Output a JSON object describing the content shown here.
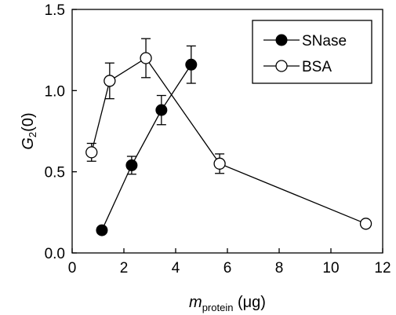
{
  "chart_data": {
    "type": "scatter",
    "xlim": [
      0,
      12
    ],
    "ylim": [
      0,
      1.5
    ],
    "x_ticks": [
      "0",
      "2",
      "4",
      "6",
      "8",
      "10",
      "12"
    ],
    "y_ticks": [
      "0.0",
      "0.5",
      "1.0",
      "1.5"
    ],
    "xlabel_main": "m",
    "xlabel_sub": "protein",
    "xlabel_unit": " (μg)",
    "ylabel_main": "G",
    "ylabel_sub": "2",
    "ylabel_tail": "(0)",
    "legend_position": "top-right",
    "series": [
      {
        "name": "SNase",
        "marker": "filled-circle",
        "color": "#000000",
        "points": [
          {
            "x": 1.15,
            "y": 0.14,
            "err": 0.0
          },
          {
            "x": 2.3,
            "y": 0.54,
            "err": 0.055
          },
          {
            "x": 3.45,
            "y": 0.88,
            "err": 0.09
          },
          {
            "x": 4.6,
            "y": 1.16,
            "err": 0.115
          }
        ]
      },
      {
        "name": "BSA",
        "marker": "open-circle",
        "color": "#000000",
        "points": [
          {
            "x": 0.75,
            "y": 0.62,
            "err": 0.055
          },
          {
            "x": 1.45,
            "y": 1.06,
            "err": 0.11
          },
          {
            "x": 2.85,
            "y": 1.2,
            "err": 0.12
          },
          {
            "x": 5.7,
            "y": 0.55,
            "err": 0.06
          },
          {
            "x": 11.35,
            "y": 0.18,
            "err": 0.02
          }
        ]
      }
    ]
  }
}
